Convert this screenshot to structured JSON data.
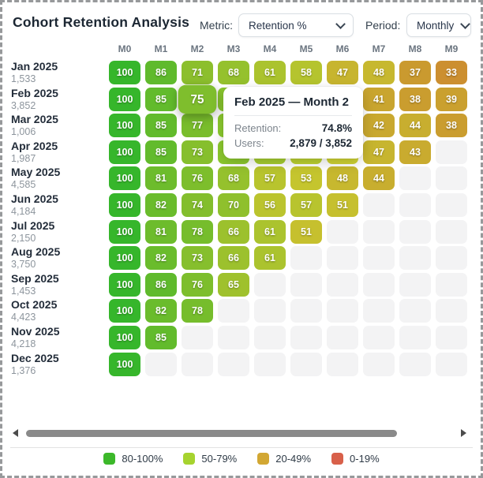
{
  "header": {
    "title": "Cohort Retention Analysis",
    "metric_label": "Metric:",
    "metric_value": "Retention %",
    "period_label": "Period:",
    "period_value": "Monthly"
  },
  "grid": {
    "columns": [
      "M0",
      "M1",
      "M2",
      "M3",
      "M4",
      "M5",
      "M6",
      "M7",
      "M8",
      "M9"
    ],
    "rows": [
      {
        "cohort": "Jan 2025",
        "users": "1,533",
        "cells": [
          {
            "v": "100"
          },
          {
            "v": "86"
          },
          {
            "v": "71"
          },
          {
            "v": "68"
          },
          {
            "v": "61"
          },
          {
            "v": "58"
          },
          {
            "v": "47"
          },
          {
            "v": "48"
          },
          {
            "v": "37"
          },
          {
            "v": "33"
          }
        ]
      },
      {
        "cohort": "Feb 2025",
        "users": "3,852",
        "cells": [
          {
            "v": "100"
          },
          {
            "v": "85"
          },
          {
            "v": "75",
            "hover": true
          },
          {
            "c": "#8bc92e"
          },
          {
            "c": "#a5ce30"
          },
          {
            "c": "#bbd231"
          },
          {
            "c": "#ccd434"
          },
          {
            "v": "41"
          },
          {
            "v": "38"
          },
          {
            "v": "39"
          }
        ]
      },
      {
        "cohort": "Mar 2025",
        "users": "1,006",
        "cells": [
          {
            "v": "100"
          },
          {
            "v": "85"
          },
          {
            "v": "77"
          },
          {
            "c": "#8bc92e"
          },
          {
            "c": "#a3ce2f"
          },
          {
            "c": "#b8d131"
          },
          {
            "c": "#cad433"
          },
          {
            "v": "42"
          },
          {
            "v": "44"
          },
          {
            "v": "38"
          }
        ]
      },
      {
        "cohort": "Apr 2025",
        "users": "1,987",
        "cells": [
          {
            "v": "100"
          },
          {
            "v": "85"
          },
          {
            "v": "73"
          },
          {
            "c": "#8cc92e"
          },
          {
            "c": "#a6ce30"
          },
          {
            "c": "#bcd232"
          },
          {
            "c": "#cfd334"
          },
          {
            "v": "47"
          },
          {
            "v": "43"
          },
          {}
        ]
      },
      {
        "cohort": "May 2025",
        "users": "4,585",
        "cells": [
          {
            "v": "100"
          },
          {
            "v": "81"
          },
          {
            "v": "76"
          },
          {
            "v": "68"
          },
          {
            "v": "57"
          },
          {
            "v": "53"
          },
          {
            "v": "48"
          },
          {
            "v": "44"
          },
          {},
          {}
        ]
      },
      {
        "cohort": "Jun 2025",
        "users": "4,184",
        "cells": [
          {
            "v": "100"
          },
          {
            "v": "82"
          },
          {
            "v": "74"
          },
          {
            "v": "70"
          },
          {
            "v": "56"
          },
          {
            "v": "57"
          },
          {
            "v": "51"
          },
          {},
          {},
          {}
        ]
      },
      {
        "cohort": "Jul 2025",
        "users": "2,150",
        "cells": [
          {
            "v": "100"
          },
          {
            "v": "81"
          },
          {
            "v": "78"
          },
          {
            "v": "66"
          },
          {
            "v": "61"
          },
          {
            "v": "51"
          },
          {},
          {},
          {},
          {}
        ]
      },
      {
        "cohort": "Aug 2025",
        "users": "3,750",
        "cells": [
          {
            "v": "100"
          },
          {
            "v": "82"
          },
          {
            "v": "73"
          },
          {
            "v": "66"
          },
          {
            "v": "61"
          },
          {},
          {},
          {},
          {},
          {}
        ]
      },
      {
        "cohort": "Sep 2025",
        "users": "1,453",
        "cells": [
          {
            "v": "100"
          },
          {
            "v": "86"
          },
          {
            "v": "76"
          },
          {
            "v": "65"
          },
          {},
          {},
          {},
          {},
          {},
          {}
        ]
      },
      {
        "cohort": "Oct 2025",
        "users": "4,423",
        "cells": [
          {
            "v": "100"
          },
          {
            "v": "82"
          },
          {
            "v": "78"
          },
          {},
          {},
          {},
          {},
          {},
          {},
          {}
        ]
      },
      {
        "cohort": "Nov 2025",
        "users": "4,218",
        "cells": [
          {
            "v": "100"
          },
          {
            "v": "85"
          },
          {},
          {},
          {},
          {},
          {},
          {},
          {},
          {}
        ]
      },
      {
        "cohort": "Dec 2025",
        "users": "1,376",
        "cells": [
          {
            "v": "100"
          },
          {},
          {},
          {},
          {},
          {},
          {},
          {},
          {},
          {}
        ]
      }
    ]
  },
  "tooltip": {
    "title": "Feb 2025 — Month 2",
    "rows": [
      {
        "label": "Retention:",
        "value": "74.8%"
      },
      {
        "label": "Users:",
        "value": "2,879 / 3,852"
      }
    ]
  },
  "legend": [
    {
      "label": "80-100%",
      "color": "#3cb82a"
    },
    {
      "label": "50-79%",
      "color": "#a6d32f"
    },
    {
      "label": "20-49%",
      "color": "#d2a733"
    },
    {
      "label": "0-19%",
      "color": "#d8604a"
    }
  ],
  "colors": {
    "cell_text": "#ffffff",
    "empty_cell": "#f3f3f4",
    "scroll_thumb": "#8a8a8a",
    "title_text": "#1c2733"
  }
}
